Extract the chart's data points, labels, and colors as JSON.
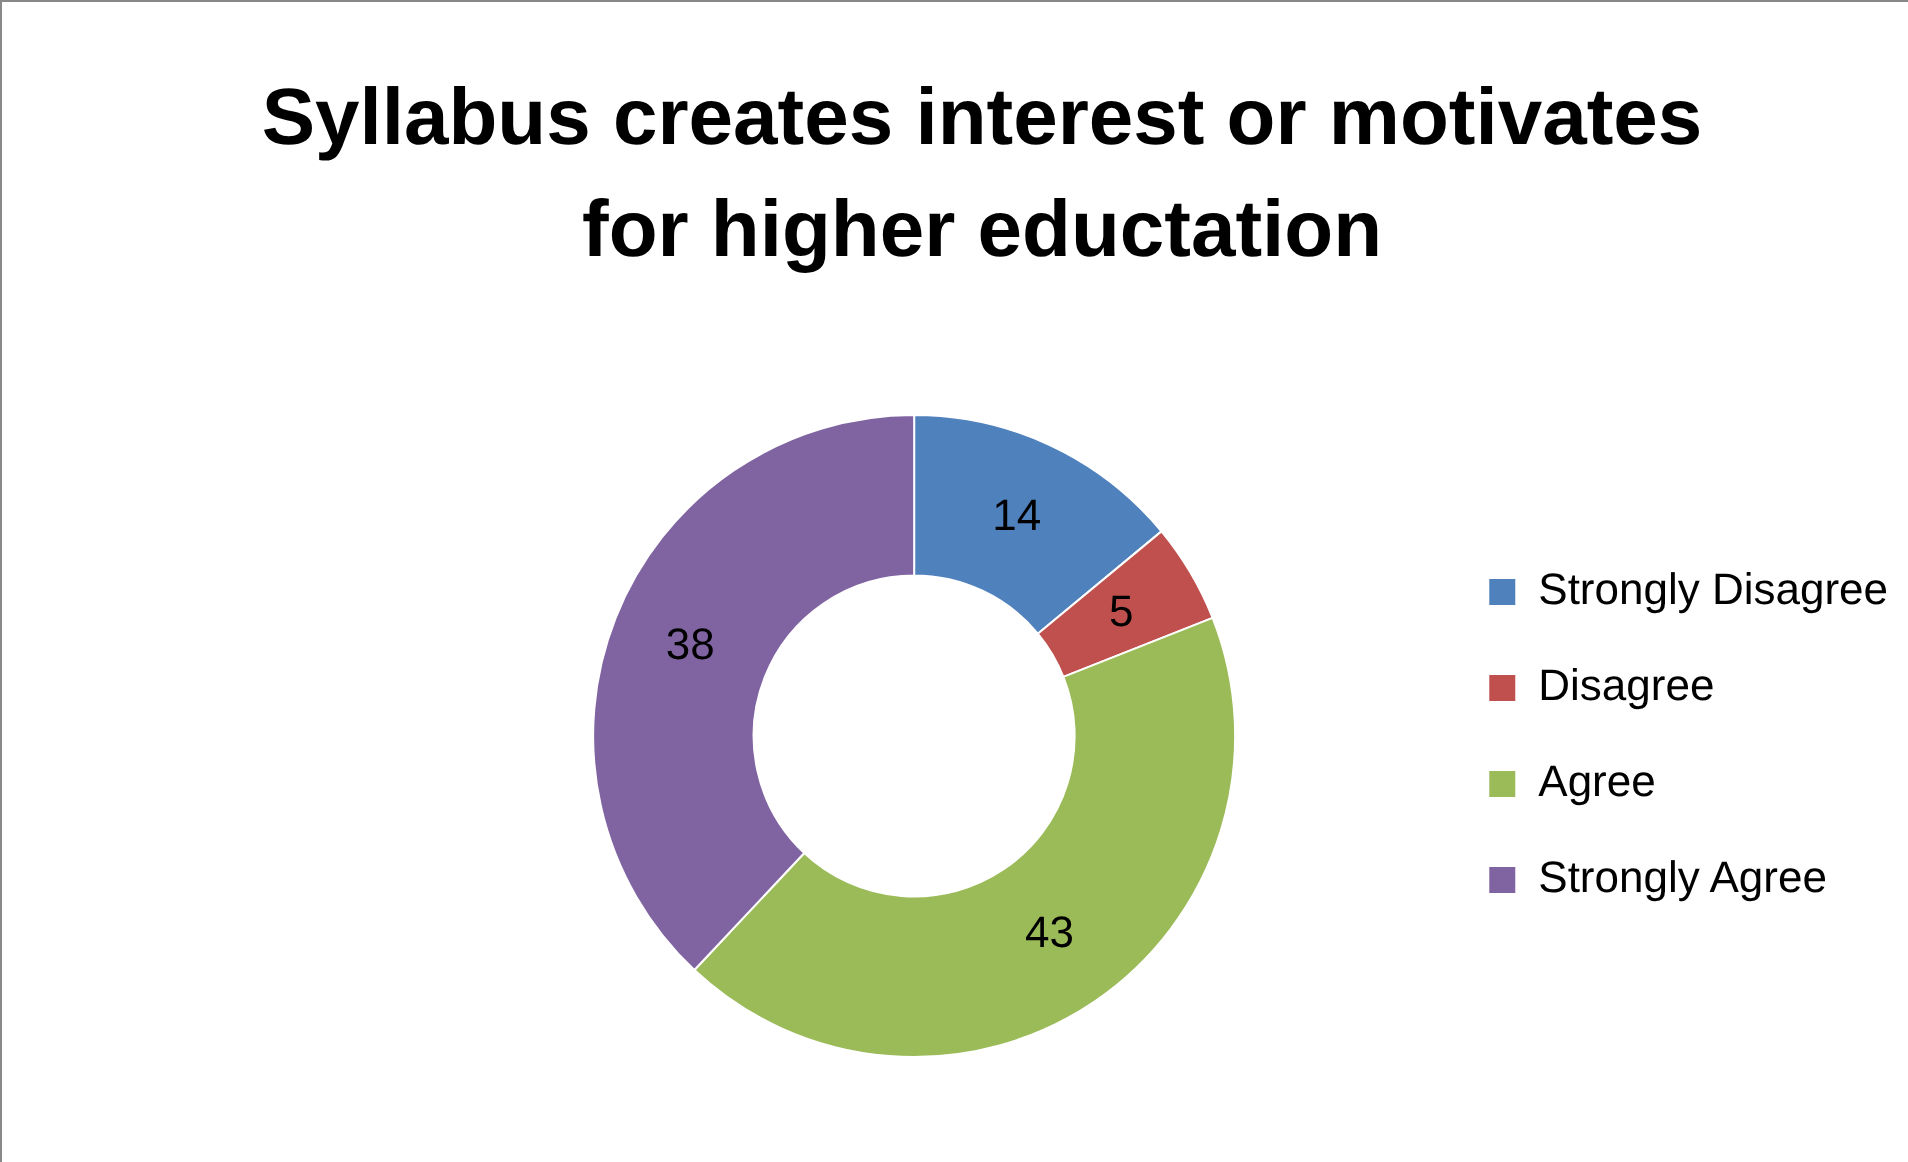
{
  "chart_data": {
    "type": "donut",
    "title": "Syllabus creates interest or motivates for higher eductation",
    "categories": [
      "Strongly Disagree",
      "Disagree",
      "Agree",
      "Strongly Agree"
    ],
    "values": [
      14,
      5,
      43,
      38
    ],
    "colors": [
      "#4f81bd",
      "#c0504d",
      "#9bbb59",
      "#8064a2"
    ],
    "data_labels": true,
    "legend": "right"
  }
}
